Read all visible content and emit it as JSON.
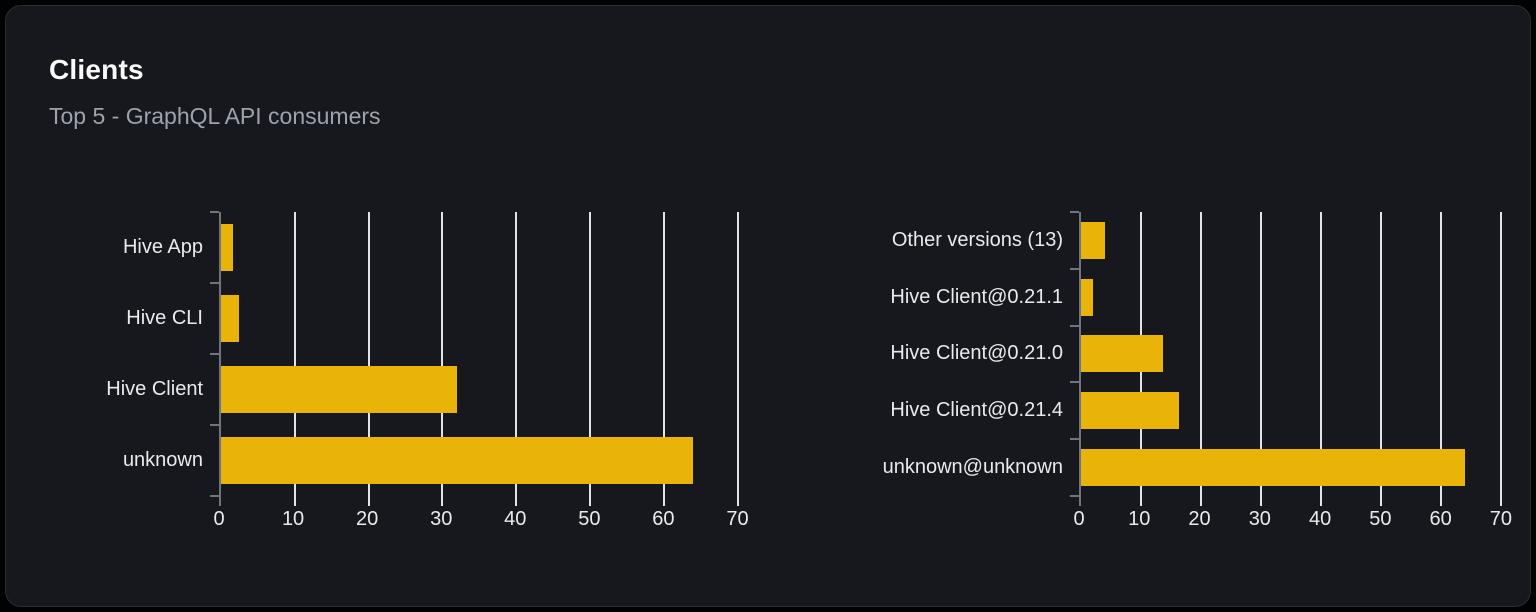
{
  "card": {
    "title": "Clients",
    "subtitle": "Top 5 - GraphQL API consumers"
  },
  "colors": {
    "page_background": "#010203",
    "card_background": "#16181d",
    "card_border": "#2a2d33",
    "title_text": "#fafafa",
    "subtitle_text": "#9ca3af",
    "label_text": "#e8eaee",
    "bar_fill": "#eab308",
    "gridline": "#dfe3ea",
    "axis": "#6f7580"
  },
  "chart_data": [
    {
      "type": "bar",
      "orientation": "horizontal",
      "position": "left",
      "categories": [
        "Hive App",
        "Hive CLI",
        "Hive Client",
        "unknown"
      ],
      "values": [
        1.6,
        2.4,
        32,
        64
      ],
      "x_ticks": [
        0,
        10,
        20,
        30,
        40,
        50,
        60,
        70
      ],
      "xlim": [
        0,
        70
      ],
      "grid": "vertical",
      "legend": "none",
      "title": "",
      "xlabel": "",
      "ylabel": ""
    },
    {
      "type": "bar",
      "orientation": "horizontal",
      "position": "right",
      "categories": [
        "Other versions (13)",
        "Hive Client@0.21.1",
        "Hive Client@0.21.0",
        "Hive Client@0.21.4",
        "unknown@unknown"
      ],
      "values": [
        4,
        2,
        13.6,
        16.4,
        64
      ],
      "x_ticks": [
        0,
        10,
        20,
        30,
        40,
        50,
        60,
        70
      ],
      "xlim": [
        0,
        70
      ],
      "grid": "vertical",
      "legend": "none",
      "title": "",
      "xlabel": "",
      "ylabel": ""
    }
  ]
}
